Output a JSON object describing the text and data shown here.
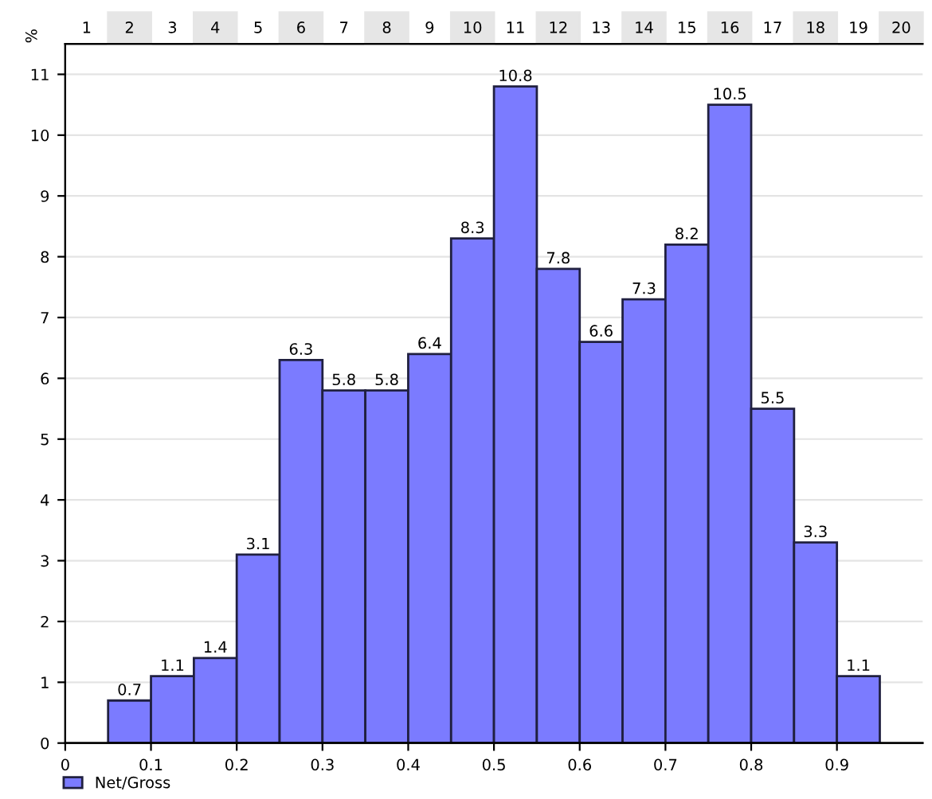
{
  "chart_data": {
    "type": "histogram",
    "ylabel": "%",
    "bins": [
      0.05,
      0.1,
      0.15,
      0.2,
      0.25,
      0.3,
      0.35,
      0.4,
      0.45,
      0.5,
      0.55,
      0.6,
      0.65,
      0.7,
      0.75,
      0.8,
      0.85,
      0.9,
      0.95
    ],
    "series": [
      {
        "name": "Net/Gross",
        "color": "#7b7bff",
        "values": [
          0.7,
          1.1,
          1.4,
          3.1,
          6.3,
          5.8,
          5.8,
          6.4,
          8.3,
          10.8,
          7.8,
          6.6,
          7.3,
          8.2,
          10.5,
          5.5,
          3.3,
          1.1
        ]
      }
    ],
    "data_labels": true,
    "xlim": [
      0,
      1
    ],
    "ylim": [
      0,
      11.5
    ],
    "xticks": [
      0,
      0.1,
      0.2,
      0.3,
      0.4,
      0.5,
      0.6,
      0.7,
      0.8,
      0.9
    ],
    "yticks": [
      0,
      1,
      2,
      3,
      4,
      5,
      6,
      7,
      8,
      9,
      10,
      11
    ],
    "x2lim": [
      0.5,
      20.5
    ],
    "x2ticks": [
      1,
      2,
      3,
      4,
      5,
      6,
      7,
      8,
      9,
      10,
      11,
      12,
      13,
      14,
      15,
      16,
      17,
      18,
      19,
      20
    ],
    "grid": "y",
    "legend": "bottom left"
  }
}
